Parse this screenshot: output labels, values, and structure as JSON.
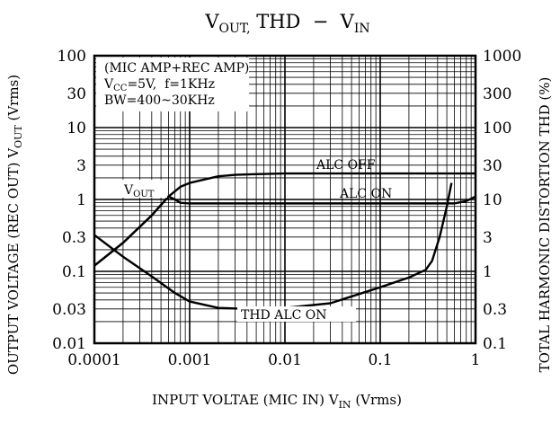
{
  "chart_data": {
    "type": "line",
    "title": {
      "base": "V",
      "sub": "OUT,",
      "rest": " THD  −  V",
      "sub2": "IN"
    },
    "xlabel": {
      "base": "INPUT VOLTAE (MIC IN) V",
      "sub": "IN",
      "rest": " (Vrms)"
    },
    "ylabel_left": {
      "base": "OUTPUT VOLTAGE (REC OUT) V",
      "sub": "OUT",
      "rest": " (Vrms)"
    },
    "ylabel_right": "TOTAL HARMONIC DISTORTION THD (%)",
    "x_scale": "log",
    "xlim": [
      0.0001,
      1
    ],
    "x_ticks": [
      {
        "v": 0.0001,
        "label": "0.0001"
      },
      {
        "v": 0.001,
        "label": "0.001"
      },
      {
        "v": 0.01,
        "label": "0.01"
      },
      {
        "v": 0.1,
        "label": "0.1"
      },
      {
        "v": 1,
        "label": "1"
      }
    ],
    "y_left_scale": "log",
    "y_left_lim": [
      0.01,
      100
    ],
    "y_left_ticks": [
      {
        "v": 100,
        "label": "100"
      },
      {
        "v": 30,
        "label": "30"
      },
      {
        "v": 10,
        "label": "10"
      },
      {
        "v": 3,
        "label": "3"
      },
      {
        "v": 1,
        "label": "1"
      },
      {
        "v": 0.3,
        "label": "0.3"
      },
      {
        "v": 0.1,
        "label": "0.1"
      },
      {
        "v": 0.03,
        "label": "0.03"
      },
      {
        "v": 0.01,
        "label": "0.01"
      }
    ],
    "y_right_scale": "log",
    "y_right_lim": [
      0.1,
      1000
    ],
    "y_right_ticks": [
      {
        "v": 1000,
        "label": "1000"
      },
      {
        "v": 300,
        "label": "300"
      },
      {
        "v": 100,
        "label": "100"
      },
      {
        "v": 30,
        "label": "30"
      },
      {
        "v": 10,
        "label": "10"
      },
      {
        "v": 3,
        "label": "3"
      },
      {
        "v": 1,
        "label": "1"
      },
      {
        "v": 0.3,
        "label": "0.3"
      },
      {
        "v": 0.1,
        "label": "0.1"
      }
    ],
    "grid": true,
    "conditions": {
      "line1": "(MIC AMP+REC AMP)",
      "line2": {
        "base": "V",
        "sub": "CC",
        "rest": "=5V,  f=1KHz"
      },
      "line3": "BW=400~30KHz"
    },
    "series": [
      {
        "name": "ALC OFF",
        "axis": "left",
        "points": [
          [
            0.0001,
            0.12
          ],
          [
            0.0002,
            0.25
          ],
          [
            0.0004,
            0.6
          ],
          [
            0.0006,
            1.1
          ],
          [
            0.0008,
            1.5
          ],
          [
            0.001,
            1.7
          ],
          [
            0.002,
            2.1
          ],
          [
            0.003,
            2.2
          ],
          [
            0.005,
            2.25
          ],
          [
            0.01,
            2.3
          ],
          [
            0.1,
            2.3
          ],
          [
            1,
            2.3
          ]
        ]
      },
      {
        "name": "ALC ON",
        "axis": "left",
        "points": [
          [
            0.0001,
            0.12
          ],
          [
            0.0002,
            0.25
          ],
          [
            0.0004,
            0.6
          ],
          [
            0.0006,
            1.1
          ],
          [
            0.0007,
            1.0
          ],
          [
            0.0008,
            0.9
          ],
          [
            0.001,
            0.88
          ],
          [
            0.01,
            0.88
          ],
          [
            0.1,
            0.88
          ],
          [
            0.6,
            0.88
          ],
          [
            0.8,
            0.95
          ],
          [
            1,
            1.1
          ]
        ]
      },
      {
        "name": "THD ALC ON",
        "axis": "right",
        "points": [
          [
            0.0001,
            3.2
          ],
          [
            0.0002,
            1.6
          ],
          [
            0.0004,
            0.85
          ],
          [
            0.0007,
            0.5
          ],
          [
            0.001,
            0.38
          ],
          [
            0.002,
            0.31
          ],
          [
            0.004,
            0.3
          ],
          [
            0.01,
            0.31
          ],
          [
            0.03,
            0.36
          ],
          [
            0.1,
            0.6
          ],
          [
            0.2,
            0.82
          ],
          [
            0.3,
            1.05
          ],
          [
            0.35,
            1.4
          ],
          [
            0.42,
            3.0
          ],
          [
            0.5,
            8.0
          ],
          [
            0.56,
            17.0
          ]
        ]
      }
    ],
    "labels": {
      "alc_off": "ALC  OFF",
      "alc_on": "ALC  ON",
      "thd": "THD  ALC  ON",
      "vout": {
        "base": "V",
        "sub": "OUT"
      }
    }
  }
}
